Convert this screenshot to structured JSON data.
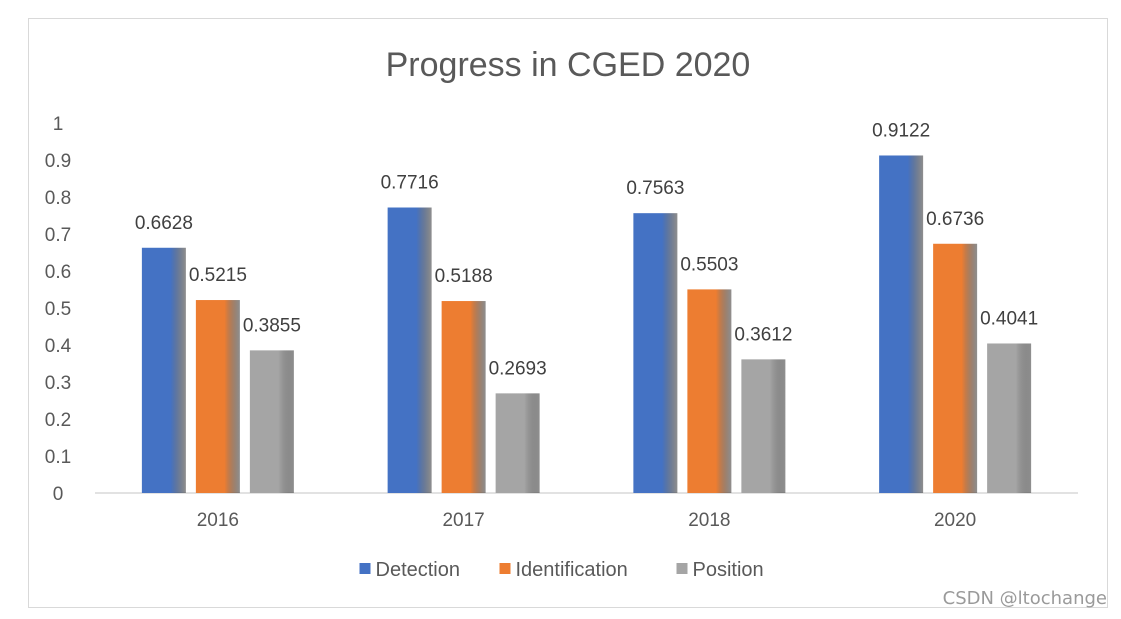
{
  "chart_data": {
    "type": "bar",
    "title": "Progress in CGED 2020",
    "categories": [
      "2016",
      "2017",
      "2018",
      "2020"
    ],
    "series": [
      {
        "name": "Detection",
        "values": [
          0.6628,
          0.7716,
          0.7563,
          0.9122
        ],
        "color": "#4472c4"
      },
      {
        "name": "Identification",
        "values": [
          0.5215,
          0.5188,
          0.5503,
          0.6736
        ],
        "color": "#ed7d31"
      },
      {
        "name": "Position",
        "values": [
          0.3855,
          0.2693,
          0.3612,
          0.4041
        ],
        "color": "#a5a5a5"
      }
    ],
    "data_labels": [
      [
        "0.6628",
        "0.7716",
        "0.7563",
        "0.9122"
      ],
      [
        "0.5215",
        "0.5188",
        "0.5503",
        "0.6736"
      ],
      [
        "0.3855",
        "0.2693",
        "0.3612",
        "0.4041"
      ]
    ],
    "yticks": [
      "0",
      "0.1",
      "0.2",
      "0.3",
      "0.4",
      "0.5",
      "0.6",
      "0.7",
      "0.8",
      "0.9",
      "1"
    ],
    "ylim": [
      0,
      1
    ],
    "xlabel": "",
    "ylabel": "",
    "legend_position": "bottom",
    "grid": false
  },
  "watermark": "CSDN @ltochange"
}
